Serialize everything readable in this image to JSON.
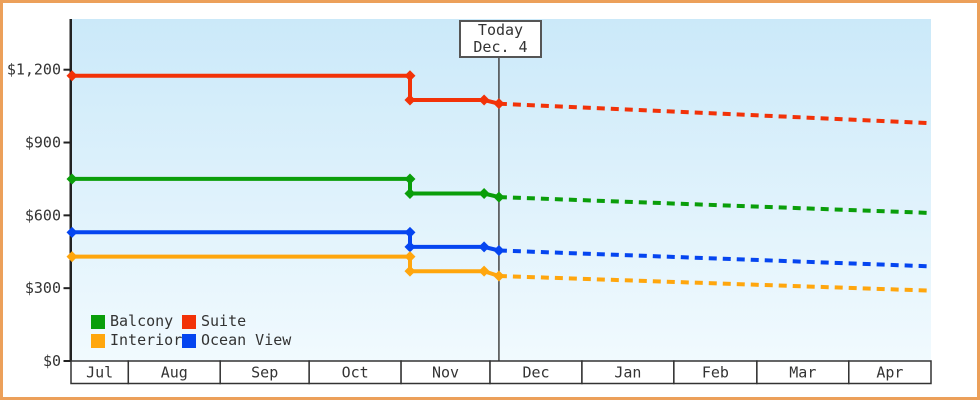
{
  "colors": {
    "frame_border": "#eca05a",
    "plot_bg_top": "#cbe9f9",
    "plot_bg_bottom": "#f1fafe",
    "axis": "#222222",
    "text": "#333333",
    "today_line": "#444444"
  },
  "chart_data": {
    "type": "line",
    "y_axis": {
      "tick_values": [
        0,
        300,
        600,
        900,
        1200
      ],
      "tick_labels": [
        "$0",
        "$300",
        "$600",
        "$900",
        "$1,200"
      ],
      "ylim": [
        0,
        1260
      ]
    },
    "x_axis": {
      "month_labels": [
        "Jul",
        "Aug",
        "Sep",
        "Oct",
        "Nov",
        "Dec",
        "Jan",
        "Feb",
        "Mar",
        "Apr"
      ]
    },
    "today_marker": {
      "label_line1": "Today",
      "label_line2": "Dec. 4",
      "date": "Dec 4"
    },
    "legend": [
      "Balcony",
      "Suite",
      "Interior",
      "Ocean View"
    ],
    "series": [
      {
        "name": "Suite",
        "color": "#f23208",
        "history": [
          {
            "date": "Jul 13",
            "price": 1175
          },
          {
            "date": "Nov 4",
            "price": 1175
          },
          {
            "date": "Nov 4",
            "price": 1075
          },
          {
            "date": "Nov 29",
            "price": 1075
          },
          {
            "date": "Dec 4",
            "price": 1060
          }
        ],
        "forecast": [
          {
            "date": "Dec 4",
            "price": 1060
          },
          {
            "date": "Apr 28",
            "price": 980
          }
        ]
      },
      {
        "name": "Balcony",
        "color": "#0a9e0a",
        "history": [
          {
            "date": "Jul 13",
            "price": 750
          },
          {
            "date": "Nov 4",
            "price": 750
          },
          {
            "date": "Nov 4",
            "price": 690
          },
          {
            "date": "Nov 29",
            "price": 690
          },
          {
            "date": "Dec 4",
            "price": 675
          }
        ],
        "forecast": [
          {
            "date": "Dec 4",
            "price": 675
          },
          {
            "date": "Apr 28",
            "price": 610
          }
        ]
      },
      {
        "name": "Ocean View",
        "color": "#0545f0",
        "history": [
          {
            "date": "Jul 13",
            "price": 530
          },
          {
            "date": "Nov 4",
            "price": 530
          },
          {
            "date": "Nov 4",
            "price": 470
          },
          {
            "date": "Nov 29",
            "price": 470
          },
          {
            "date": "Dec 4",
            "price": 455
          }
        ],
        "forecast": [
          {
            "date": "Dec 4",
            "price": 455
          },
          {
            "date": "Apr 28",
            "price": 390
          }
        ]
      },
      {
        "name": "Interior",
        "color": "#ffa60d",
        "history": [
          {
            "date": "Jul 13",
            "price": 430
          },
          {
            "date": "Nov 4",
            "price": 430
          },
          {
            "date": "Nov 4",
            "price": 370
          },
          {
            "date": "Nov 29",
            "price": 370
          },
          {
            "date": "Dec 4",
            "price": 350
          }
        ],
        "forecast": [
          {
            "date": "Dec 4",
            "price": 350
          },
          {
            "date": "Apr 28",
            "price": 290
          }
        ]
      }
    ]
  }
}
